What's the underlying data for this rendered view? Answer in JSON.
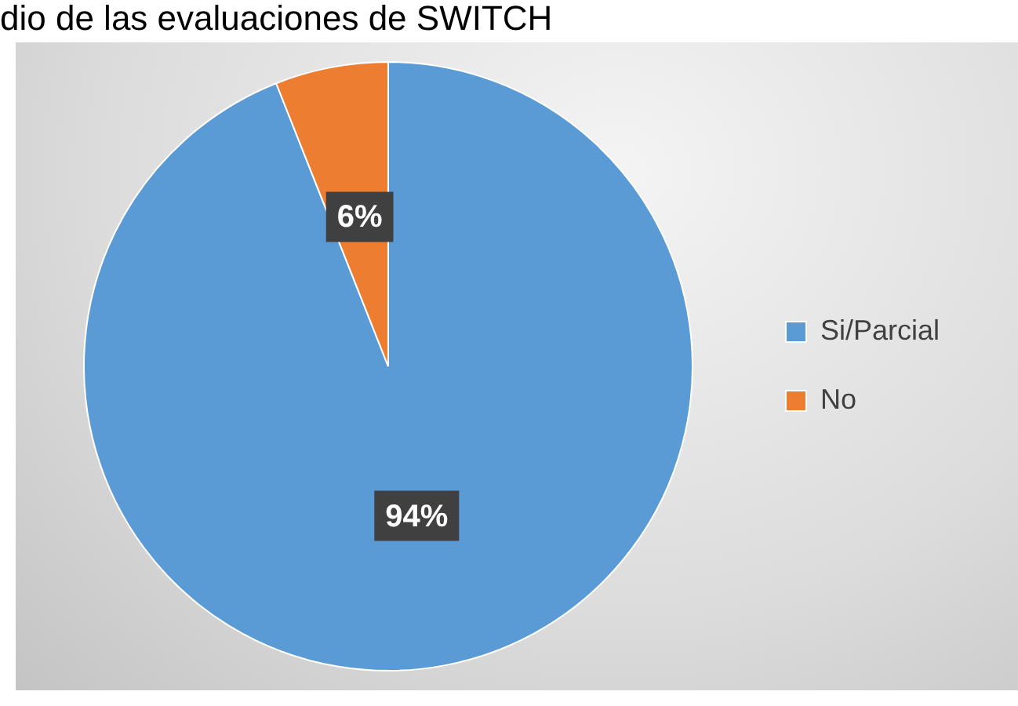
{
  "chart_data": {
    "type": "pie",
    "title": "dio de las evaluaciones de SWITCH",
    "categories": [
      "Si/Parcial",
      "No"
    ],
    "values": [
      94,
      6
    ],
    "colors": [
      "#5b9bd5",
      "#ed7d31"
    ],
    "value_labels": [
      "94%",
      "6%"
    ],
    "legend": "right"
  }
}
